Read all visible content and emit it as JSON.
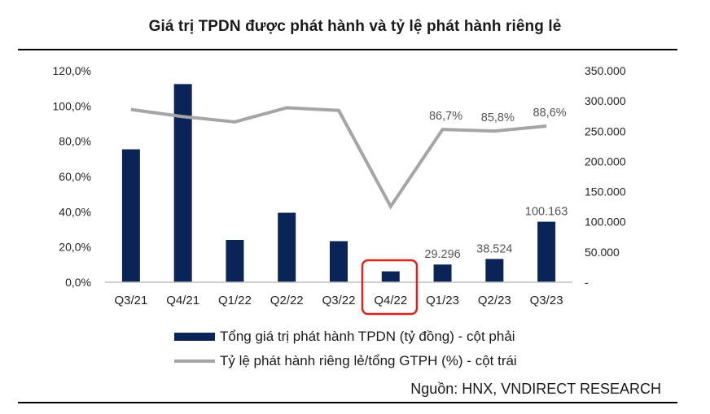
{
  "title": "Giá trị TPDN được phát hành và tỷ lệ phát hành riêng lẻ",
  "source": "Nguồn: HNX, VNDIRECT RESEARCH",
  "chart_data": {
    "type": "bar",
    "categories": [
      "Q3/21",
      "Q4/21",
      "Q1/22",
      "Q2/22",
      "Q3/22",
      "Q4/22",
      "Q1/23",
      "Q2/23",
      "Q3/23"
    ],
    "left_axis": {
      "ticks": [
        "0,0%",
        "20,0%",
        "40,0%",
        "60,0%",
        "80,0%",
        "100,0%",
        "120,0%"
      ],
      "ylim": [
        0,
        120
      ]
    },
    "right_axis": {
      "ticks": [
        "-",
        "50.000",
        "100.000",
        "150.000",
        "200.000",
        "250.000",
        "300.000",
        "350.000"
      ],
      "ylim": [
        0,
        350000
      ]
    },
    "series": [
      {
        "name": "Tổng giá trị phát hành TPDN (tỷ đồng) - cột phải",
        "type": "bar",
        "axis": "right",
        "color": "#0b2457",
        "values": [
          220000,
          328000,
          70000,
          115000,
          68000,
          18000,
          29296,
          38524,
          100163
        ],
        "data_labels": [
          "",
          "",
          "",
          "",
          "",
          "",
          "29.296",
          "38.524",
          "100.163"
        ]
      },
      {
        "name": "Tỷ lệ phát hành riêng lẻ/tổng GTPH (%) - cột trái",
        "type": "line",
        "axis": "left",
        "color": "#a5a5a5",
        "values": [
          98.0,
          94.0,
          91.0,
          99.0,
          97.5,
          43.0,
          86.7,
          85.8,
          88.6
        ],
        "data_labels": [
          "",
          "",
          "",
          "",
          "",
          "",
          "86,7%",
          "85,8%",
          "88,6%"
        ]
      }
    ],
    "highlight": {
      "category": "Q4/22",
      "color": "#e0201b"
    },
    "grid": false,
    "legend_position": "bottom"
  }
}
